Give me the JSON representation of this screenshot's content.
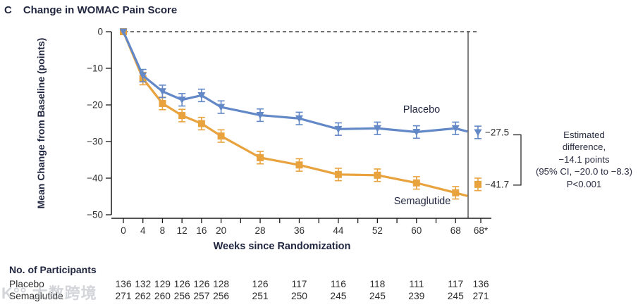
{
  "panel": {
    "letter": "C",
    "title": "Change in WOMAC Pain Score"
  },
  "chart_data": {
    "type": "line",
    "title": "Change in WOMAC Pain Score",
    "xlabel": "Weeks since Randomization",
    "ylabel": "Mean Change from Baseline (points)",
    "ylim": [
      -50,
      0
    ],
    "yticks": [
      0,
      -10,
      -20,
      -30,
      -40,
      -50
    ],
    "x_weeks": [
      0,
      4,
      8,
      12,
      16,
      20,
      28,
      36,
      44,
      52,
      60,
      68
    ],
    "x_minor_weeks": [
      24,
      32,
      40,
      48,
      56,
      64
    ],
    "x_extra_tick_label": "68*",
    "zero_reference_line": true,
    "error_bar_half_points": 1.7,
    "series": [
      {
        "name": "Placebo",
        "color": "#6288C7",
        "marker": "triangle-down",
        "values": [
          0,
          -12.0,
          -16.3,
          -18.6,
          -17.4,
          -20.6,
          -22.8,
          -23.7,
          -26.6,
          -26.4,
          -27.4,
          -26.4
        ],
        "week68star_value": -27.5,
        "week68star_label": "−27.5",
        "label_pos": {
          "x": 598,
          "y": 160
        }
      },
      {
        "name": "Semaglutide",
        "color": "#E8A33E",
        "marker": "square",
        "values": [
          0,
          -12.8,
          -19.6,
          -22.9,
          -25.1,
          -28.5,
          -34.4,
          -36.4,
          -39.0,
          -39.2,
          -41.3,
          -44.0
        ],
        "week68star_value": -41.7,
        "week68star_label": "−41.7",
        "label_pos": {
          "x": 599,
          "y": 290
        }
      }
    ],
    "annotation": {
      "lines": [
        "Estimated",
        "difference,",
        "−14.1 points",
        "(95% CI, −20.0 to −8.3)",
        "P<0.001"
      ]
    }
  },
  "participants": {
    "header": "No. of Participants",
    "columns": [
      "0",
      "4",
      "8",
      "12",
      "16",
      "20",
      "28",
      "36",
      "44",
      "52",
      "60",
      "68",
      "68*"
    ],
    "rows": [
      {
        "label": "Placebo",
        "counts": [
          136,
          132,
          129,
          126,
          126,
          128,
          126,
          117,
          116,
          118,
          111,
          117,
          136
        ]
      },
      {
        "label": "Semaglutide",
        "counts": [
          271,
          262,
          260,
          256,
          257,
          256,
          251,
          250,
          245,
          245,
          239,
          245,
          271
        ]
      }
    ]
  },
  "watermark": "K°° 大数跨境",
  "colors": {
    "navy": "#222740",
    "ink": "#2e2e2e",
    "axis": "#1a1a1a"
  }
}
